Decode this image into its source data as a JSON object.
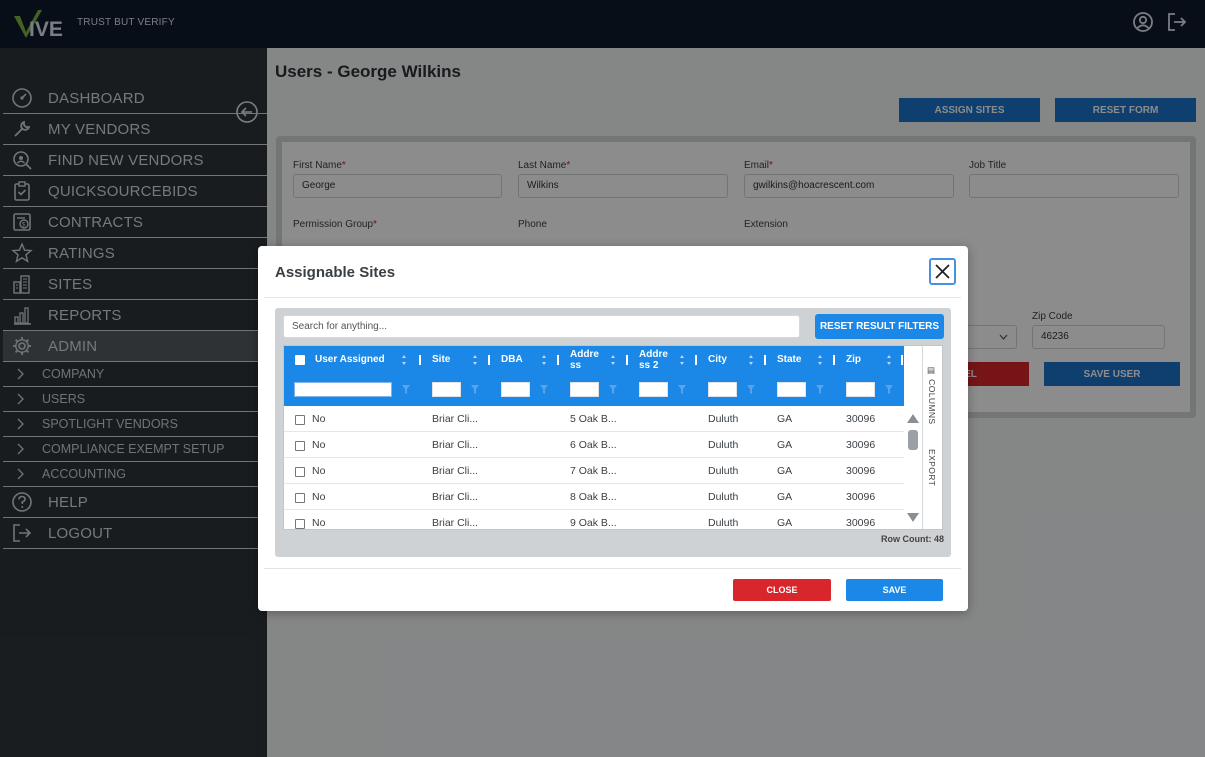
{
  "brand": {
    "logo_text": "VIVE",
    "tagline": "TRUST BUT VERIFY",
    "color": "#7cb342"
  },
  "topbar": {
    "icons": [
      "user-circle-icon",
      "logout-icon"
    ]
  },
  "sidebar": {
    "items": [
      {
        "label": "DASHBOARD",
        "icon": "speedometer-icon"
      },
      {
        "label": "MY VENDORS",
        "icon": "wrench-icon"
      },
      {
        "label": "FIND NEW VENDORS",
        "icon": "search-person-icon"
      },
      {
        "label": "QUICKSOURCEBIDS",
        "icon": "clipboard-check-icon"
      },
      {
        "label": "CONTRACTS",
        "icon": "dollar-document-icon"
      },
      {
        "label": "RATINGS",
        "icon": "star-icon"
      },
      {
        "label": "SITES",
        "icon": "buildings-icon"
      },
      {
        "label": "REPORTS",
        "icon": "bar-chart-icon"
      },
      {
        "label": "ADMIN",
        "icon": "gear-icon"
      }
    ],
    "admin_subitems": [
      "COMPANY",
      "USERS",
      "SPOTLIGHT VENDORS",
      "COMPLIANCE EXEMPT SETUP",
      "ACCOUNTING"
    ],
    "bottom_items": [
      {
        "label": "HELP",
        "icon": "question-circle-icon"
      },
      {
        "label": "LOGOUT",
        "icon": "sign-out-icon"
      }
    ]
  },
  "page": {
    "title": "Users - George Wilkins",
    "assign_sites": "ASSIGN SITES",
    "reset_form": "RESET FORM",
    "cancel_partial": "EL",
    "save_user": "SAVE USER"
  },
  "form": {
    "first_name": {
      "label": "First Name",
      "value": "George"
    },
    "last_name": {
      "label": "Last Name",
      "value": "Wilkins"
    },
    "email": {
      "label": "Email",
      "value": "gwilkins@hoacrescent.com"
    },
    "job_title": {
      "label": "Job Title",
      "value": ""
    },
    "permission_group": {
      "label": "Permission Group"
    },
    "phone": {
      "label": "Phone"
    },
    "extension": {
      "label": "Extension"
    },
    "zip_code": {
      "label": "Zip Code",
      "value": "46236"
    },
    "required_mark": "*"
  },
  "modal": {
    "title": "Assignable Sites",
    "search_placeholder": "Search for anything...",
    "reset_filters": "RESET RESULT FILTERS",
    "columns": [
      {
        "label": "User Assigned"
      },
      {
        "label": "Site"
      },
      {
        "label": "DBA"
      },
      {
        "label": "Addre ss"
      },
      {
        "label": "Addre ss 2"
      },
      {
        "label": "City"
      },
      {
        "label": "State"
      },
      {
        "label": "Zip"
      }
    ],
    "rows": [
      {
        "assigned": "No",
        "site": "Briar Cli...",
        "dba": "",
        "address": "5 Oak B...",
        "address2": "",
        "city": "Duluth",
        "state": "GA",
        "zip": "30096"
      },
      {
        "assigned": "No",
        "site": "Briar Cli...",
        "dba": "",
        "address": "6 Oak B...",
        "address2": "",
        "city": "Duluth",
        "state": "GA",
        "zip": "30096"
      },
      {
        "assigned": "No",
        "site": "Briar Cli...",
        "dba": "",
        "address": "7 Oak B...",
        "address2": "",
        "city": "Duluth",
        "state": "GA",
        "zip": "30096"
      },
      {
        "assigned": "No",
        "site": "Briar Cli...",
        "dba": "",
        "address": "8 Oak B...",
        "address2": "",
        "city": "Duluth",
        "state": "GA",
        "zip": "30096"
      },
      {
        "assigned": "No",
        "site": "Briar Cli...",
        "dba": "",
        "address": "9 Oak B...",
        "address2": "",
        "city": "Duluth",
        "state": "GA",
        "zip": "30096"
      }
    ],
    "tool_columns": "COLUMNS",
    "tool_export": "EXPORT",
    "row_count": "Row Count: 48",
    "close_label": "CLOSE",
    "save_label": "SAVE"
  },
  "colors": {
    "topbar": "#0f1a2b",
    "sidebar": "#2e3438",
    "primary": "#1b87e6",
    "danger": "#d9262d"
  }
}
